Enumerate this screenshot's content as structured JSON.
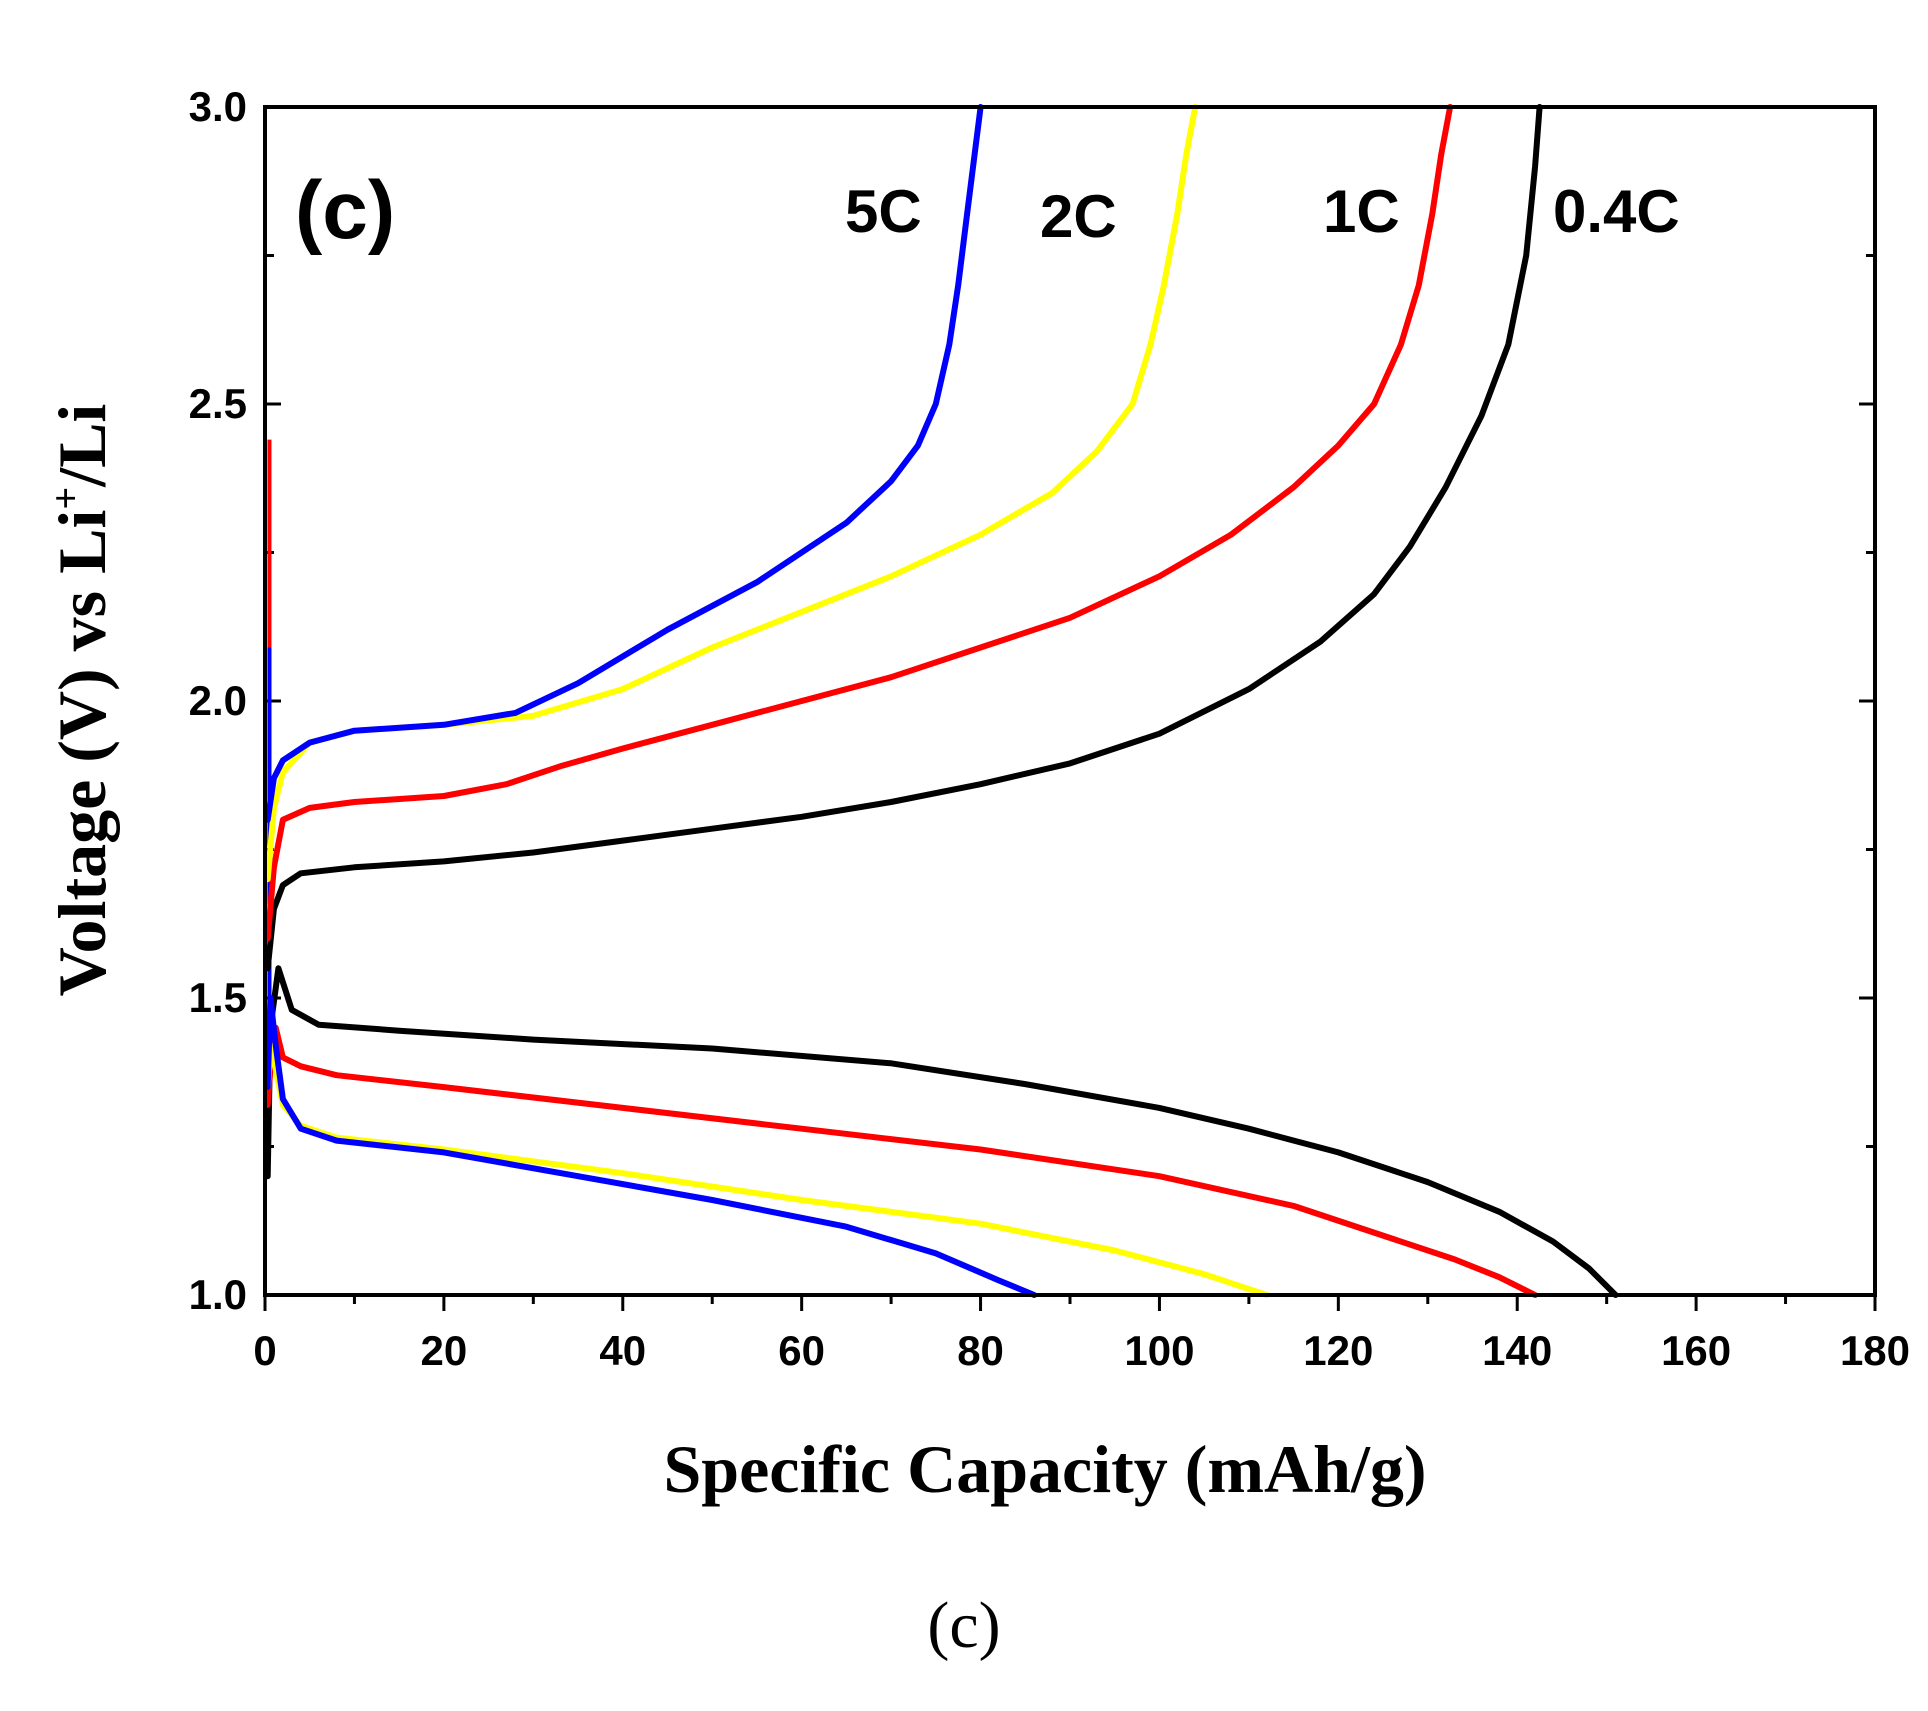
{
  "chart_data": {
    "type": "line",
    "panel_label": "(c)",
    "xlabel": "Specific Capacity (mAh/g)",
    "ylabel": "Voltage (V) vs Li+/Li",
    "ylabel_parts": {
      "main": "Voltage (V) vs Li",
      "sup": "+",
      "tail": "/Li"
    },
    "xlim": [
      0,
      180
    ],
    "ylim": [
      1.0,
      3.0
    ],
    "x_ticks": [
      "0",
      "20",
      "40",
      "60",
      "80",
      "100",
      "120",
      "140",
      "160",
      "180"
    ],
    "y_ticks": [
      "1.0",
      "1.5",
      "2.0",
      "2.5",
      "3.0"
    ],
    "series": [
      {
        "name": "0.4C",
        "color": "#000000",
        "charge": [
          [
            0.3,
            1.55
          ],
          [
            1,
            1.65
          ],
          [
            2,
            1.69
          ],
          [
            4,
            1.71
          ],
          [
            10,
            1.72
          ],
          [
            20,
            1.73
          ],
          [
            30,
            1.745
          ],
          [
            40,
            1.765
          ],
          [
            50,
            1.785
          ],
          [
            60,
            1.805
          ],
          [
            70,
            1.83
          ],
          [
            80,
            1.86
          ],
          [
            90,
            1.895
          ],
          [
            100,
            1.945
          ],
          [
            110,
            2.02
          ],
          [
            118,
            2.1
          ],
          [
            124,
            2.18
          ],
          [
            128,
            2.26
          ],
          [
            132,
            2.36
          ],
          [
            136,
            2.48
          ],
          [
            139,
            2.6
          ],
          [
            141,
            2.75
          ],
          [
            142,
            2.9
          ],
          [
            142.5,
            3.0
          ]
        ],
        "discharge": [
          [
            0.3,
            1.2
          ],
          [
            0.6,
            1.45
          ],
          [
            1.5,
            1.55
          ],
          [
            3,
            1.48
          ],
          [
            6,
            1.455
          ],
          [
            15,
            1.445
          ],
          [
            30,
            1.43
          ],
          [
            50,
            1.415
          ],
          [
            70,
            1.39
          ],
          [
            85,
            1.355
          ],
          [
            100,
            1.315
          ],
          [
            110,
            1.28
          ],
          [
            120,
            1.24
          ],
          [
            130,
            1.19
          ],
          [
            138,
            1.14
          ],
          [
            144,
            1.09
          ],
          [
            148,
            1.045
          ],
          [
            151,
            1.0
          ]
        ]
      },
      {
        "name": "1C",
        "color": "#ff0000",
        "charge": [
          [
            0.3,
            1.6
          ],
          [
            1,
            1.72
          ],
          [
            2,
            1.8
          ],
          [
            5,
            1.82
          ],
          [
            10,
            1.83
          ],
          [
            20,
            1.84
          ],
          [
            27,
            1.86
          ],
          [
            33,
            1.89
          ],
          [
            40,
            1.92
          ],
          [
            50,
            1.96
          ],
          [
            60,
            2.0
          ],
          [
            70,
            2.04
          ],
          [
            80,
            2.09
          ],
          [
            90,
            2.14
          ],
          [
            100,
            2.21
          ],
          [
            108,
            2.28
          ],
          [
            115,
            2.36
          ],
          [
            120,
            2.43
          ],
          [
            124,
            2.5
          ],
          [
            127,
            2.6
          ],
          [
            129,
            2.7
          ],
          [
            130.5,
            2.82
          ],
          [
            131.5,
            2.92
          ],
          [
            132.5,
            3.0
          ]
        ],
        "discharge": [
          [
            0.3,
            1.32
          ],
          [
            0.6,
            1.38
          ],
          [
            1.2,
            1.45
          ],
          [
            2,
            1.4
          ],
          [
            4,
            1.385
          ],
          [
            8,
            1.37
          ],
          [
            20,
            1.35
          ],
          [
            40,
            1.315
          ],
          [
            60,
            1.28
          ],
          [
            80,
            1.245
          ],
          [
            100,
            1.2
          ],
          [
            115,
            1.15
          ],
          [
            125,
            1.1
          ],
          [
            133,
            1.06
          ],
          [
            138,
            1.03
          ],
          [
            142,
            1.0
          ]
        ]
      },
      {
        "name": "2C",
        "color": "#ffff00",
        "charge": [
          [
            0.3,
            1.7
          ],
          [
            1,
            1.82
          ],
          [
            2,
            1.88
          ],
          [
            5,
            1.93
          ],
          [
            10,
            1.95
          ],
          [
            20,
            1.96
          ],
          [
            30,
            1.975
          ],
          [
            40,
            2.02
          ],
          [
            50,
            2.09
          ],
          [
            60,
            2.15
          ],
          [
            70,
            2.21
          ],
          [
            80,
            2.28
          ],
          [
            88,
            2.35
          ],
          [
            93,
            2.42
          ],
          [
            97,
            2.5
          ],
          [
            99,
            2.6
          ],
          [
            100.5,
            2.7
          ],
          [
            102,
            2.82
          ],
          [
            103,
            2.92
          ],
          [
            104,
            3.0
          ]
        ],
        "discharge": [
          [
            0.3,
            1.35
          ],
          [
            0.6,
            1.42
          ],
          [
            1.2,
            1.38
          ],
          [
            2,
            1.32
          ],
          [
            4,
            1.285
          ],
          [
            8,
            1.265
          ],
          [
            20,
            1.245
          ],
          [
            40,
            1.205
          ],
          [
            60,
            1.16
          ],
          [
            80,
            1.12
          ],
          [
            95,
            1.075
          ],
          [
            105,
            1.035
          ],
          [
            112,
            1.0
          ]
        ]
      },
      {
        "name": "5C",
        "color": "#0000ff",
        "charge": [
          [
            0.3,
            1.8
          ],
          [
            1,
            1.87
          ],
          [
            2,
            1.9
          ],
          [
            5,
            1.93
          ],
          [
            10,
            1.95
          ],
          [
            20,
            1.96
          ],
          [
            28,
            1.98
          ],
          [
            35,
            2.03
          ],
          [
            45,
            2.12
          ],
          [
            55,
            2.2
          ],
          [
            65,
            2.3
          ],
          [
            70,
            2.37
          ],
          [
            73,
            2.43
          ],
          [
            75,
            2.5
          ],
          [
            76.5,
            2.6
          ],
          [
            77.5,
            2.7
          ],
          [
            78.5,
            2.82
          ],
          [
            79.5,
            2.94
          ],
          [
            80,
            3.0
          ]
        ],
        "discharge": [
          [
            0.3,
            1.35
          ],
          [
            0.6,
            1.5
          ],
          [
            1.2,
            1.42
          ],
          [
            2,
            1.33
          ],
          [
            4,
            1.28
          ],
          [
            8,
            1.26
          ],
          [
            20,
            1.24
          ],
          [
            35,
            1.2
          ],
          [
            50,
            1.16
          ],
          [
            65,
            1.115
          ],
          [
            75,
            1.07
          ],
          [
            82,
            1.025
          ],
          [
            86,
            1.0
          ]
        ]
      }
    ],
    "spikes": [
      {
        "color": "#ff0000",
        "x": 0.5,
        "y": [
          1.33,
          2.44
        ]
      },
      {
        "color": "#0000ff",
        "x": 0.5,
        "y": [
          1.5,
          2.09
        ]
      }
    ]
  },
  "caption": "(c)"
}
